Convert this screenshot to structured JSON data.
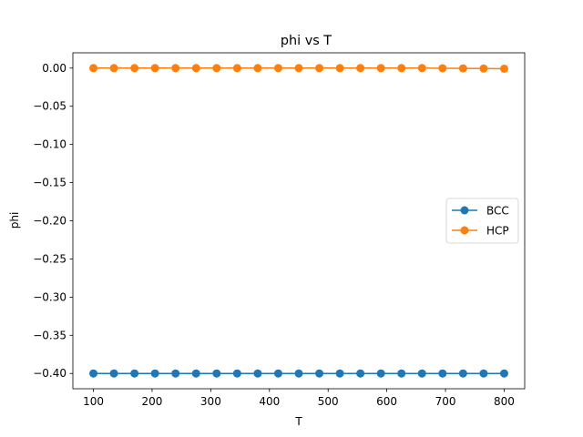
{
  "chart_data": {
    "type": "line",
    "title": "phi vs T",
    "xlabel": "T",
    "ylabel": "phi",
    "xlim": [
      65,
      835
    ],
    "ylim": [
      -0.42,
      0.02
    ],
    "xticks": [
      100,
      200,
      300,
      400,
      500,
      600,
      700,
      800
    ],
    "yticks": [
      0.0,
      -0.05,
      -0.1,
      -0.15,
      -0.2,
      -0.25,
      -0.3,
      -0.35,
      -0.4
    ],
    "x": [
      100,
      135,
      170,
      205,
      240,
      275,
      310,
      345,
      380,
      415,
      450,
      485,
      520,
      555,
      590,
      625,
      660,
      695,
      730,
      765,
      800
    ],
    "series": [
      {
        "name": "BCC",
        "color": "#1f77b4",
        "values": [
          -0.4,
          -0.4,
          -0.4,
          -0.4,
          -0.4,
          -0.4,
          -0.4,
          -0.4,
          -0.4,
          -0.4,
          -0.4,
          -0.4,
          -0.4,
          -0.4,
          -0.4,
          -0.4,
          -0.4,
          -0.4,
          -0.4,
          -0.4,
          -0.4
        ]
      },
      {
        "name": "HCP",
        "color": "#ff7f0e",
        "values": [
          0.0,
          0.0,
          0.0,
          0.0,
          0.0,
          0.0,
          0.0,
          0.0,
          0.0,
          0.0,
          0.0,
          0.0,
          0.0,
          0.0,
          0.0,
          0.0,
          0.0,
          -0.0002,
          -0.0004,
          -0.0006,
          -0.0008
        ]
      }
    ],
    "legend": "center-right",
    "grid": false
  }
}
